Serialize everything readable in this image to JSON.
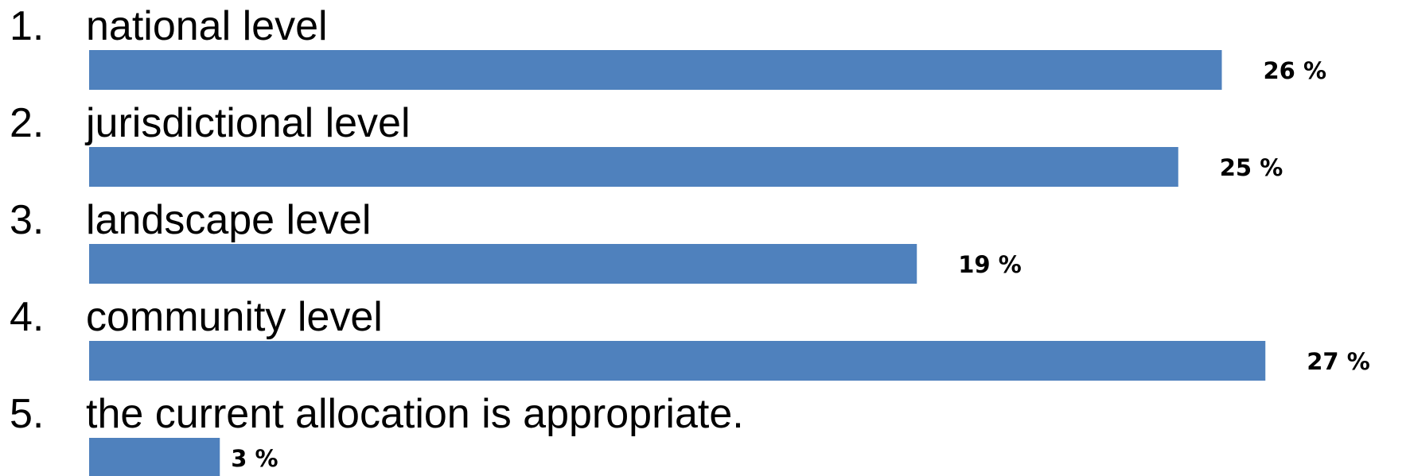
{
  "chart_data": {
    "type": "bar",
    "orientation": "horizontal",
    "categories": [
      "national level",
      "jurisdictional level",
      "landscape level",
      "community level",
      "the current allocation is appropriate."
    ],
    "numbers": [
      "1.",
      "2.",
      "3.",
      "4.",
      "5."
    ],
    "values": [
      26,
      25,
      19,
      27,
      3
    ],
    "value_labels": [
      "26 %",
      "25 %",
      "19 %",
      "27 %",
      "3 %"
    ],
    "unit": "%",
    "bar_color": "#4f81bd",
    "title": "",
    "xlabel": "",
    "ylabel": "",
    "grid": false,
    "legend": "none"
  }
}
